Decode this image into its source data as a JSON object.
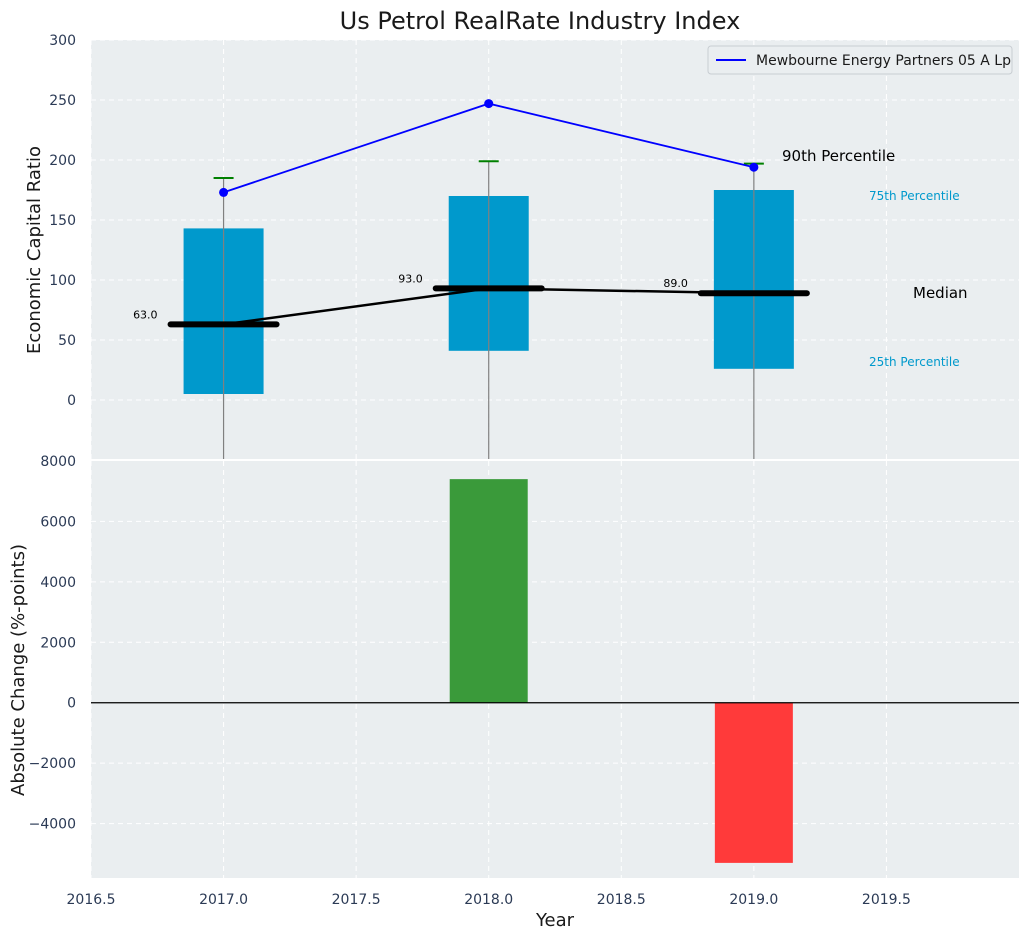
{
  "chart_data": {
    "title": "Us Petrol RealRate Industry Index",
    "xlabel": "Year",
    "x_ticks": [
      "2016.5",
      "2017.0",
      "2017.5",
      "2018.0",
      "2018.5",
      "2019.0",
      "2019.5"
    ],
    "xlim": [
      2016.5,
      2020.0
    ],
    "top": {
      "type": "box",
      "ylabel": "Economic Capital Ratio",
      "ylim": [
        -50,
        300
      ],
      "y_ticks": [
        "0",
        "50",
        "100",
        "150",
        "200",
        "250",
        "300"
      ],
      "years": [
        2017,
        2018,
        2019
      ],
      "q1": [
        5,
        41,
        26
      ],
      "q3": [
        143,
        170,
        175
      ],
      "median": [
        63,
        93,
        89
      ],
      "p90": [
        185,
        199,
        197
      ],
      "median_labels": [
        "63.0",
        "93.0",
        "89.0"
      ],
      "company": {
        "name": "Mewbourne Energy Partners 05 A Lp",
        "values": [
          173,
          247,
          194
        ]
      },
      "annotations": {
        "p90": "90th Percentile",
        "p75": "75th Percentile",
        "median": "Median",
        "p25": "25th Percentile"
      },
      "colors": {
        "box": "#0099cc",
        "whisker_cap": "#008000",
        "line": "#0000ff",
        "median": "#000000"
      }
    },
    "bottom": {
      "type": "bar",
      "ylabel": "Absolute Change (%-points)",
      "ylim": [
        -5800,
        8000
      ],
      "y_ticks": [
        "−4000",
        "−2000",
        "0",
        "2000",
        "4000",
        "6000",
        "8000"
      ],
      "years": [
        2018,
        2019
      ],
      "values": [
        7400,
        -5300
      ],
      "colors": {
        "positive": "#3a9a3a",
        "negative": "#ff3a3a"
      }
    },
    "grid": true,
    "legend": "top-right",
    "background": "#eaeef0"
  }
}
